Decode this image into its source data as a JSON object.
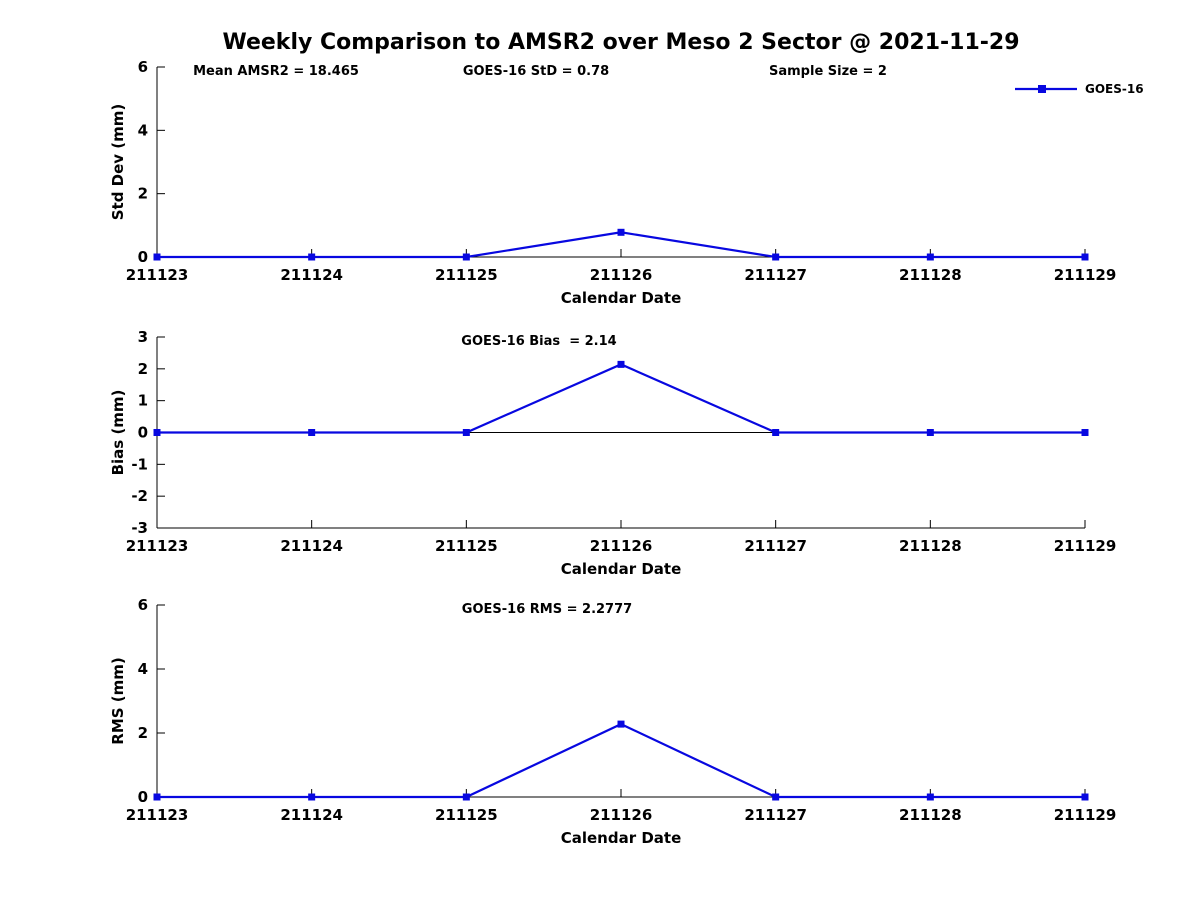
{
  "figure_title": "Weekly Comparison to AMSR2 over Meso 2 Sector @ 2021-11-29",
  "legend": {
    "label": "GOES-16"
  },
  "colors": {
    "line": "#0808e0",
    "marker": "#0808e0",
    "axis": "#000000",
    "text": "#000000",
    "background": "#ffffff"
  },
  "chart_data": [
    {
      "id": "std-dev",
      "type": "line",
      "series_name": "GOES-16",
      "annotations": [
        "Mean AMSR2 = 18.465",
        "GOES-16 StD = 0.78",
        "Sample Size = 2"
      ],
      "xlabel": "Calendar Date",
      "ylabel": "Std Dev (mm)",
      "x": [
        "211123",
        "211124",
        "211125",
        "211126",
        "211127",
        "211128",
        "211129"
      ],
      "values": [
        0,
        0,
        0,
        0.78,
        0,
        0,
        0
      ],
      "ylim": [
        0,
        6
      ],
      "yticks": [
        0,
        2,
        4,
        6
      ],
      "zero_line": false,
      "grid": false
    },
    {
      "id": "bias",
      "type": "line",
      "series_name": "GOES-16",
      "annotations": [
        "GOES-16 Bias  = 2.14"
      ],
      "xlabel": "Calendar Date",
      "ylabel": "Bias (mm)",
      "x": [
        "211123",
        "211124",
        "211125",
        "211126",
        "211127",
        "211128",
        "211129"
      ],
      "values": [
        0,
        0,
        0,
        2.14,
        0,
        0,
        0
      ],
      "ylim": [
        -3,
        3
      ],
      "yticks": [
        -3,
        -2,
        -1,
        0,
        1,
        2,
        3
      ],
      "zero_line": true,
      "grid": false
    },
    {
      "id": "rms",
      "type": "line",
      "series_name": "GOES-16",
      "annotations": [
        "GOES-16 RMS = 2.2777"
      ],
      "xlabel": "Calendar Date",
      "ylabel": "RMS (mm)",
      "x": [
        "211123",
        "211124",
        "211125",
        "211126",
        "211127",
        "211128",
        "211129"
      ],
      "values": [
        0,
        0,
        0,
        2.2777,
        0,
        0,
        0
      ],
      "ylim": [
        0,
        6
      ],
      "yticks": [
        0,
        2,
        4,
        6
      ],
      "zero_line": false,
      "grid": false
    }
  ]
}
